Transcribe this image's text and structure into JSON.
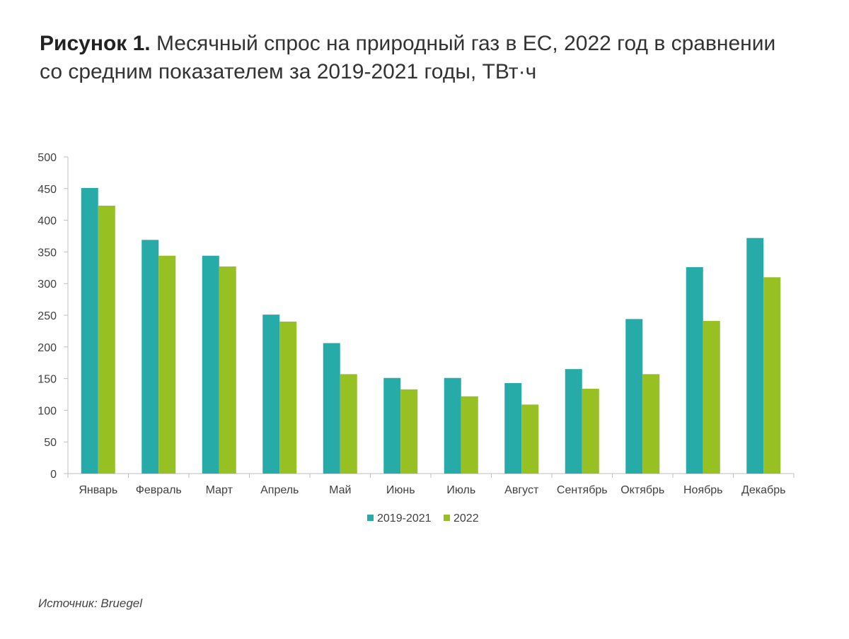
{
  "title": {
    "lead": "Рисунок 1.",
    "text": "Месячный спрос на природный газ в ЕС, 2022 год в сравнении со средним показателем за 2019-2021 годы, ТВт·ч"
  },
  "source": {
    "label": "Источник:",
    "value": "Bruegel"
  },
  "colors": {
    "series_2019_2021": "#26ABA8",
    "series_2022": "#97C122",
    "axis": "#BFBFBF",
    "text": "#404040"
  },
  "chart_data": {
    "type": "bar",
    "title": "Месячный спрос на природный газ в ЕС, 2022 год в сравнении со средним показателем за 2019-2021 годы, ТВт·ч",
    "xlabel": "",
    "ylabel": "",
    "ylim": [
      0,
      500
    ],
    "yticks": [
      0,
      50,
      100,
      150,
      200,
      250,
      300,
      350,
      400,
      450,
      500
    ],
    "grid": false,
    "legend_position": "bottom",
    "categories": [
      "Январь",
      "Февраль",
      "Март",
      "Апрель",
      "Май",
      "Июнь",
      "Июль",
      "Август",
      "Сентябрь",
      "Октябрь",
      "Ноябрь",
      "Декабрь"
    ],
    "series": [
      {
        "name": "2019-2021",
        "values": [
          451,
          369,
          344,
          251,
          206,
          151,
          151,
          143,
          165,
          244,
          326,
          372
        ]
      },
      {
        "name": "2022",
        "values": [
          423,
          344,
          327,
          240,
          157,
          133,
          122,
          109,
          134,
          157,
          241,
          310
        ]
      }
    ]
  }
}
